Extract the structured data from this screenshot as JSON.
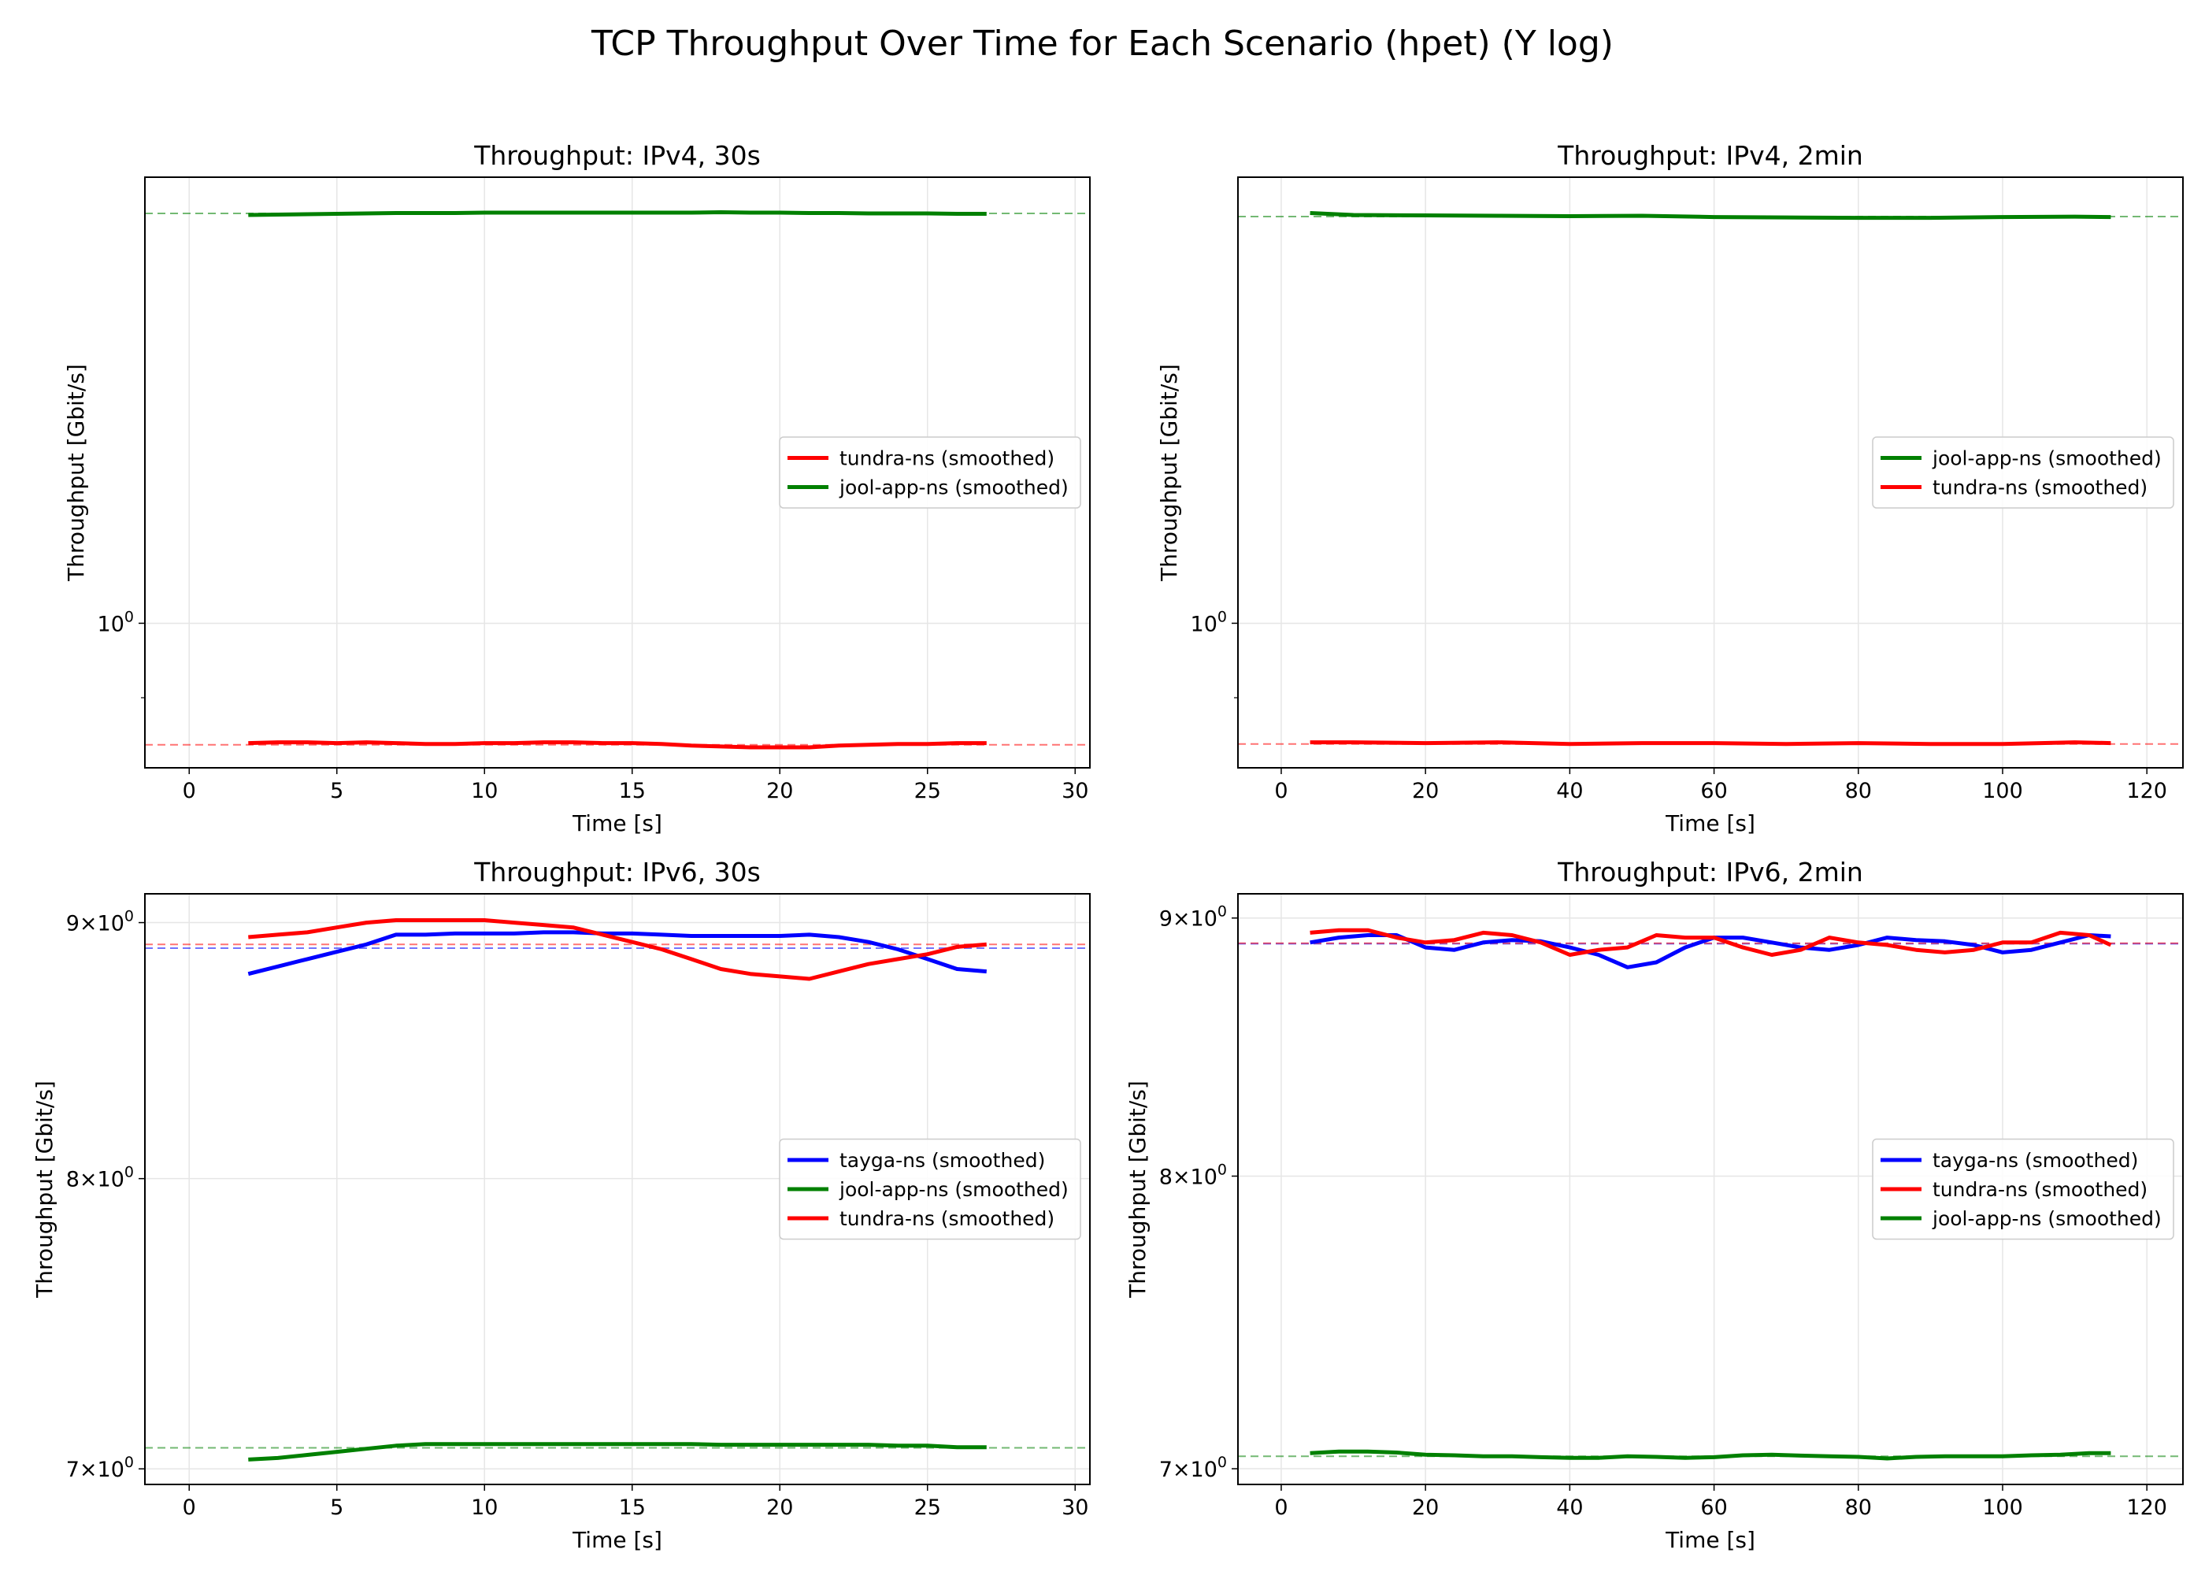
{
  "figure_title": "TCP Throughput Over Time for Each Scenario (hpet) (Y log)",
  "colors": {
    "tundra-ns": "#ff0000",
    "jool-app-ns": "#008000",
    "tayga-ns": "#0000ff"
  },
  "chart_data": [
    {
      "type": "line",
      "title": "Throughput: IPv4, 30s",
      "xlabel": "Time [s]",
      "ylabel": "Throughput [Gbit/s]",
      "yscale": "log",
      "xlim": [
        -1.5,
        30.5
      ],
      "ylim": [
        0.815,
        1.88
      ],
      "xticks": [
        0,
        5,
        10,
        15,
        20,
        25,
        30
      ],
      "yticks": [
        {
          "value": 1.0,
          "label": "10^0"
        }
      ],
      "legend": {
        "position": "center-right",
        "entries": [
          "tundra-ns (smoothed)",
          "jool-app-ns (smoothed)"
        ]
      },
      "series": [
        {
          "name": "tundra-ns (smoothed)",
          "color": "#ff0000",
          "x": [
            2,
            3,
            4,
            5,
            6,
            7,
            8,
            9,
            10,
            11,
            12,
            13,
            14,
            15,
            16,
            17,
            18,
            19,
            20,
            21,
            22,
            23,
            24,
            25,
            26,
            27
          ],
          "y": [
            0.844,
            0.845,
            0.845,
            0.844,
            0.845,
            0.844,
            0.843,
            0.843,
            0.844,
            0.844,
            0.845,
            0.845,
            0.844,
            0.844,
            0.843,
            0.841,
            0.84,
            0.839,
            0.839,
            0.839,
            0.841,
            0.842,
            0.843,
            0.843,
            0.844,
            0.844
          ]
        },
        {
          "name": "jool-app-ns (smoothed)",
          "color": "#008000",
          "x": [
            2,
            3,
            4,
            5,
            6,
            7,
            8,
            9,
            10,
            11,
            12,
            13,
            14,
            15,
            16,
            17,
            18,
            19,
            20,
            21,
            22,
            23,
            24,
            25,
            26,
            27
          ],
          "y": [
            1.782,
            1.783,
            1.784,
            1.785,
            1.786,
            1.787,
            1.787,
            1.787,
            1.788,
            1.788,
            1.788,
            1.788,
            1.788,
            1.788,
            1.788,
            1.788,
            1.789,
            1.788,
            1.788,
            1.787,
            1.787,
            1.786,
            1.786,
            1.786,
            1.785,
            1.785
          ]
        }
      ],
      "mean_lines": [
        {
          "series": "tundra-ns",
          "y": 0.842
        },
        {
          "series": "jool-app-ns",
          "y": 1.786
        }
      ]
    },
    {
      "type": "line",
      "title": "Throughput: IPv4, 2min",
      "xlabel": "Time [s]",
      "ylabel": "Throughput [Gbit/s]",
      "yscale": "log",
      "xlim": [
        -6,
        125
      ],
      "ylim": [
        0.815,
        1.88
      ],
      "xticks": [
        0,
        20,
        40,
        60,
        80,
        100,
        120
      ],
      "yticks": [
        {
          "value": 1.0,
          "label": "10^0"
        }
      ],
      "legend": {
        "position": "center-right",
        "entries": [
          "jool-app-ns (smoothed)",
          "tundra-ns (smoothed)"
        ]
      },
      "series": [
        {
          "name": "jool-app-ns (smoothed)",
          "color": "#008000",
          "x": [
            4,
            10,
            20,
            30,
            40,
            50,
            60,
            70,
            80,
            90,
            100,
            110,
            115
          ],
          "y": [
            1.787,
            1.782,
            1.781,
            1.78,
            1.779,
            1.78,
            1.777,
            1.776,
            1.775,
            1.775,
            1.777,
            1.778,
            1.777
          ]
        },
        {
          "name": "tundra-ns (smoothed)",
          "color": "#ff0000",
          "x": [
            4,
            10,
            20,
            30,
            40,
            50,
            60,
            70,
            80,
            90,
            100,
            110,
            115
          ],
          "y": [
            0.845,
            0.845,
            0.844,
            0.845,
            0.843,
            0.844,
            0.844,
            0.843,
            0.844,
            0.843,
            0.843,
            0.845,
            0.844
          ]
        }
      ],
      "mean_lines": [
        {
          "series": "jool-app-ns",
          "y": 1.778
        },
        {
          "series": "tundra-ns",
          "y": 0.843
        }
      ]
    },
    {
      "type": "line",
      "title": "Throughput: IPv6, 30s",
      "xlabel": "Time [s]",
      "ylabel": "Throughput [Gbit/s]",
      "yscale": "log",
      "xlim": [
        -1.5,
        30.5
      ],
      "ylim": [
        6.95,
        9.12
      ],
      "xticks": [
        0,
        5,
        10,
        15,
        20,
        25,
        30
      ],
      "yticks": [
        {
          "value": 7,
          "label": "7×10^0"
        },
        {
          "value": 8,
          "label": "8×10^0"
        },
        {
          "value": 9,
          "label": "9×10^0"
        }
      ],
      "legend": {
        "position": "center-right",
        "entries": [
          "tayga-ns (smoothed)",
          "jool-app-ns (smoothed)",
          "tundra-ns (smoothed)"
        ]
      },
      "series": [
        {
          "name": "tayga-ns (smoothed)",
          "color": "#0000ff",
          "x": [
            2,
            3,
            4,
            5,
            6,
            7,
            8,
            9,
            10,
            11,
            12,
            13,
            14,
            15,
            16,
            17,
            18,
            19,
            20,
            21,
            22,
            23,
            24,
            25,
            26,
            27
          ],
          "y": [
            8.79,
            8.82,
            8.85,
            8.88,
            8.91,
            8.95,
            8.95,
            8.955,
            8.955,
            8.955,
            8.96,
            8.96,
            8.955,
            8.955,
            8.95,
            8.945,
            8.945,
            8.945,
            8.945,
            8.95,
            8.94,
            8.92,
            8.89,
            8.85,
            8.81,
            8.8
          ]
        },
        {
          "name": "tundra-ns (smoothed)",
          "color": "#ff0000",
          "x": [
            2,
            3,
            4,
            5,
            6,
            7,
            8,
            9,
            10,
            11,
            12,
            13,
            14,
            15,
            16,
            17,
            18,
            19,
            20,
            21,
            22,
            23,
            24,
            25,
            26,
            27
          ],
          "y": [
            8.94,
            8.95,
            8.96,
            8.98,
            9.0,
            9.01,
            9.01,
            9.01,
            9.01,
            9.0,
            8.99,
            8.98,
            8.95,
            8.92,
            8.89,
            8.85,
            8.81,
            8.79,
            8.78,
            8.77,
            8.8,
            8.83,
            8.85,
            8.87,
            8.9,
            8.91
          ]
        },
        {
          "name": "jool-app-ns (smoothed)",
          "color": "#008000",
          "x": [
            2,
            3,
            4,
            5,
            6,
            7,
            8,
            9,
            10,
            11,
            12,
            13,
            14,
            15,
            16,
            17,
            18,
            19,
            20,
            21,
            22,
            23,
            24,
            25,
            26,
            27
          ],
          "y": [
            7.03,
            7.035,
            7.045,
            7.055,
            7.065,
            7.075,
            7.08,
            7.08,
            7.08,
            7.08,
            7.08,
            7.08,
            7.08,
            7.08,
            7.08,
            7.08,
            7.078,
            7.078,
            7.078,
            7.078,
            7.078,
            7.078,
            7.075,
            7.075,
            7.07,
            7.07
          ]
        }
      ],
      "mean_lines": [
        {
          "series": "tayga-ns",
          "y": 8.895
        },
        {
          "series": "tundra-ns",
          "y": 8.91
        },
        {
          "series": "jool-app-ns",
          "y": 7.068
        }
      ]
    },
    {
      "type": "line",
      "title": "Throughput: IPv6, 2min",
      "xlabel": "Time [s]",
      "ylabel": "Throughput [Gbit/s]",
      "yscale": "log",
      "xlim": [
        -6,
        125
      ],
      "ylim": [
        6.95,
        9.1
      ],
      "xticks": [
        0,
        20,
        40,
        60,
        80,
        100,
        120
      ],
      "yticks": [
        {
          "value": 7,
          "label": "7×10^0"
        },
        {
          "value": 8,
          "label": "8×10^0"
        },
        {
          "value": 9,
          "label": "9×10^0"
        }
      ],
      "legend": {
        "position": "center-right",
        "entries": [
          "tayga-ns (smoothed)",
          "tundra-ns (smoothed)",
          "jool-app-ns (smoothed)"
        ]
      },
      "series": [
        {
          "name": "tayga-ns (smoothed)",
          "color": "#0000ff",
          "x": [
            4,
            8,
            12,
            16,
            20,
            24,
            28,
            32,
            36,
            40,
            44,
            48,
            52,
            56,
            60,
            64,
            68,
            72,
            76,
            80,
            84,
            88,
            92,
            96,
            100,
            104,
            108,
            112,
            115
          ],
          "y": [
            8.9,
            8.92,
            8.93,
            8.93,
            8.88,
            8.87,
            8.9,
            8.91,
            8.905,
            8.88,
            8.85,
            8.8,
            8.82,
            8.88,
            8.92,
            8.92,
            8.9,
            8.88,
            8.87,
            8.89,
            8.92,
            8.91,
            8.905,
            8.89,
            8.86,
            8.87,
            8.9,
            8.93,
            8.925
          ]
        },
        {
          "name": "tundra-ns (smoothed)",
          "color": "#ff0000",
          "x": [
            4,
            8,
            12,
            16,
            20,
            24,
            28,
            32,
            36,
            40,
            44,
            48,
            52,
            56,
            60,
            64,
            68,
            72,
            76,
            80,
            84,
            88,
            92,
            96,
            100,
            104,
            108,
            112,
            115
          ],
          "y": [
            8.94,
            8.95,
            8.95,
            8.92,
            8.9,
            8.91,
            8.94,
            8.93,
            8.9,
            8.85,
            8.87,
            8.88,
            8.93,
            8.92,
            8.92,
            8.88,
            8.85,
            8.87,
            8.92,
            8.9,
            8.89,
            8.87,
            8.86,
            8.87,
            8.9,
            8.9,
            8.94,
            8.93,
            8.89
          ]
        },
        {
          "name": "jool-app-ns (smoothed)",
          "color": "#008000",
          "x": [
            4,
            8,
            12,
            16,
            20,
            24,
            28,
            32,
            36,
            40,
            44,
            48,
            52,
            56,
            60,
            64,
            68,
            72,
            76,
            80,
            84,
            88,
            92,
            96,
            100,
            104,
            108,
            112,
            115
          ],
          "y": [
            7.05,
            7.055,
            7.055,
            7.052,
            7.045,
            7.043,
            7.04,
            7.04,
            7.037,
            7.035,
            7.035,
            7.04,
            7.038,
            7.035,
            7.037,
            7.043,
            7.045,
            7.042,
            7.04,
            7.038,
            7.033,
            7.038,
            7.04,
            7.04,
            7.04,
            7.043,
            7.045,
            7.05,
            7.05
          ]
        }
      ],
      "mean_lines": [
        {
          "series": "tayga-ns",
          "y": 8.895
        },
        {
          "series": "tundra-ns",
          "y": 8.897
        },
        {
          "series": "jool-app-ns",
          "y": 7.04
        }
      ]
    }
  ]
}
